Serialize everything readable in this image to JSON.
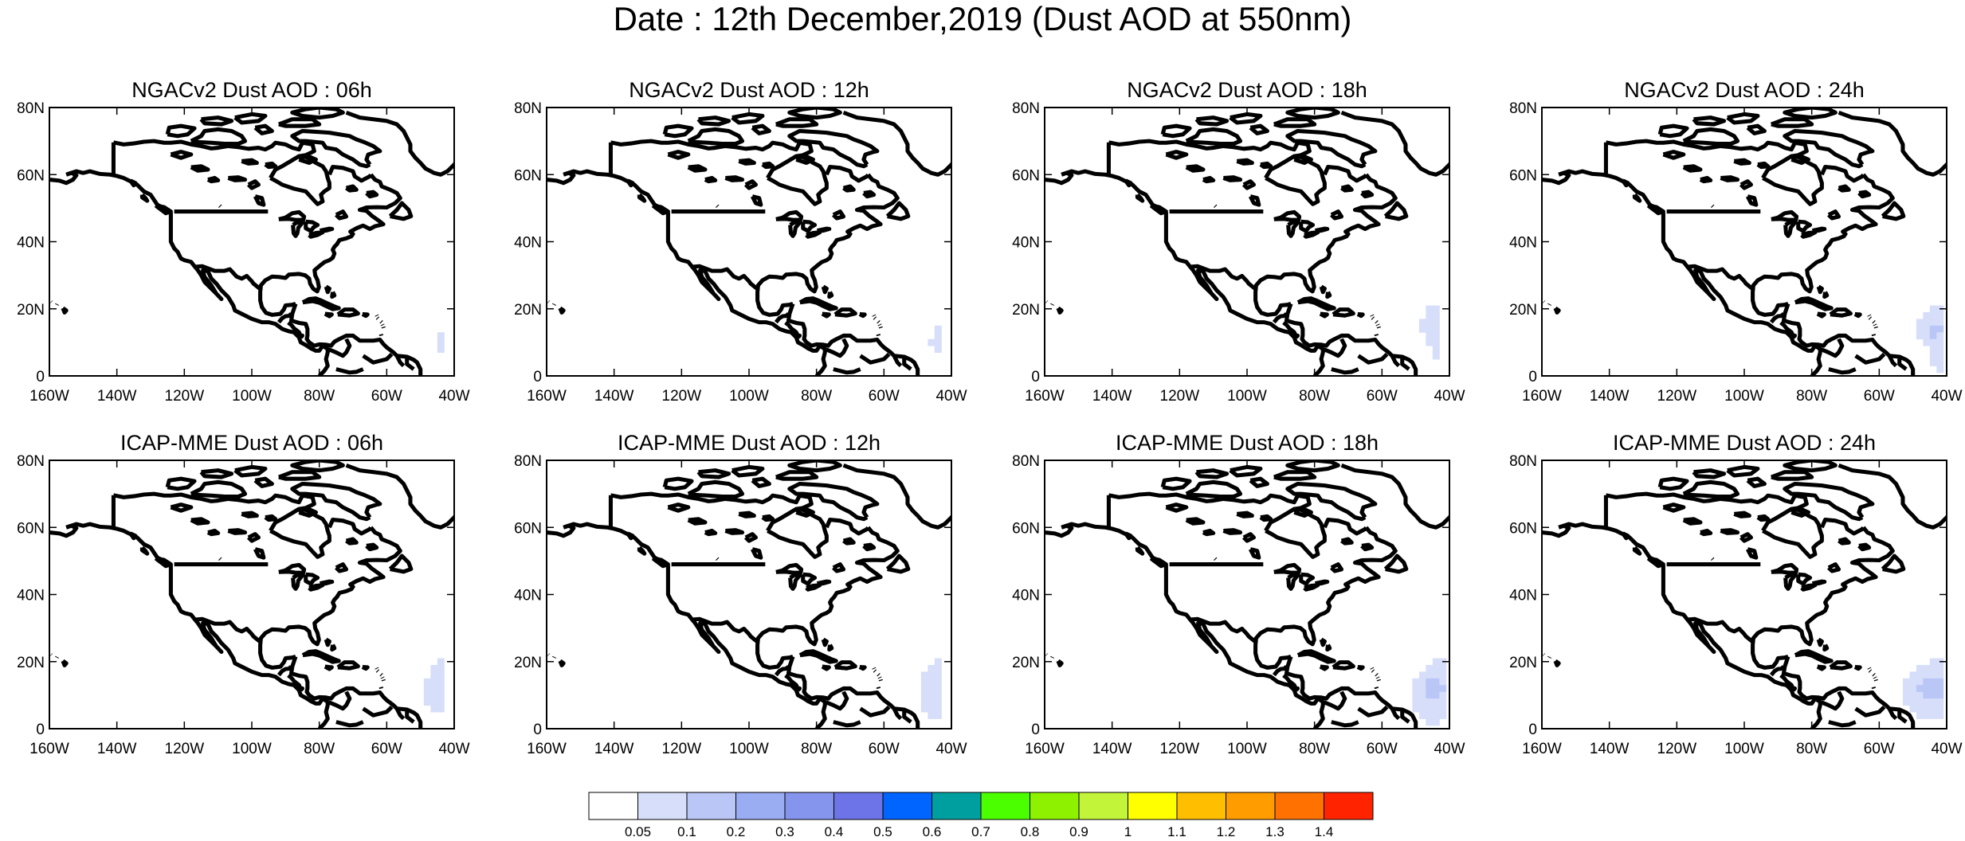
{
  "title": "Date : 12th December,2019 (Dust AOD at 550nm)",
  "panels": [
    {
      "title": "NGACv2 Dust AOD : 06h",
      "dust_cells": [
        [
          -44,
          12,
          0.05
        ],
        [
          -44,
          10,
          0.05
        ],
        [
          -44,
          8,
          0.05
        ]
      ]
    },
    {
      "title": "NGACv2 Dust AOD : 12h",
      "dust_cells": [
        [
          -44,
          14,
          0.05
        ],
        [
          -44,
          12,
          0.05
        ],
        [
          -44,
          10,
          0.05
        ],
        [
          -44,
          8,
          0.05
        ],
        [
          -46,
          10,
          0.05
        ]
      ]
    },
    {
      "title": "NGACv2 Dust AOD : 18h",
      "dust_cells": [
        [
          -46,
          20,
          0.05
        ],
        [
          -44,
          20,
          0.05
        ],
        [
          -46,
          18,
          0.05
        ],
        [
          -44,
          18,
          0.05
        ],
        [
          -48,
          16,
          0.05
        ],
        [
          -46,
          16,
          0.05
        ],
        [
          -44,
          16,
          0.05
        ],
        [
          -48,
          14,
          0.05
        ],
        [
          -46,
          14,
          0.05
        ],
        [
          -44,
          14,
          0.05
        ],
        [
          -46,
          12,
          0.05
        ],
        [
          -44,
          12,
          0.05
        ],
        [
          -46,
          10,
          0.05
        ],
        [
          -44,
          10,
          0.05
        ],
        [
          -44,
          8,
          0.05
        ],
        [
          -44,
          6,
          0.05
        ]
      ]
    },
    {
      "title": "NGACv2 Dust AOD : 24h",
      "dust_cells": [
        [
          -44,
          20,
          0.05
        ],
        [
          -42,
          20,
          0.05
        ],
        [
          -46,
          18,
          0.05
        ],
        [
          -44,
          18,
          0.05
        ],
        [
          -42,
          18,
          0.05
        ],
        [
          -48,
          16,
          0.05
        ],
        [
          -46,
          16,
          0.05
        ],
        [
          -44,
          16,
          0.05
        ],
        [
          -42,
          16,
          0.05
        ],
        [
          -48,
          14,
          0.05
        ],
        [
          -46,
          14,
          0.05
        ],
        [
          -44,
          14,
          0.1
        ],
        [
          -42,
          14,
          0.1
        ],
        [
          -48,
          12,
          0.05
        ],
        [
          -46,
          12,
          0.05
        ],
        [
          -44,
          12,
          0.1
        ],
        [
          -42,
          12,
          0.05
        ],
        [
          -46,
          10,
          0.05
        ],
        [
          -44,
          10,
          0.05
        ],
        [
          -42,
          10,
          0.05
        ],
        [
          -44,
          8,
          0.05
        ],
        [
          -42,
          8,
          0.05
        ],
        [
          -44,
          6,
          0.05
        ],
        [
          -42,
          6,
          0.05
        ],
        [
          -44,
          4,
          0.05
        ],
        [
          -42,
          4,
          0.05
        ],
        [
          -42,
          2,
          0.05
        ]
      ]
    },
    {
      "title": "ICAP-MME Dust AOD : 06h",
      "dust_cells": [
        [
          -44,
          20,
          0.05
        ],
        [
          -46,
          18,
          0.05
        ],
        [
          -44,
          18,
          0.05
        ],
        [
          -46,
          16,
          0.05
        ],
        [
          -44,
          16,
          0.05
        ],
        [
          -48,
          14,
          0.05
        ],
        [
          -46,
          14,
          0.05
        ],
        [
          -44,
          14,
          0.05
        ],
        [
          -48,
          12,
          0.05
        ],
        [
          -46,
          12,
          0.05
        ],
        [
          -44,
          12,
          0.05
        ],
        [
          -48,
          10,
          0.05
        ],
        [
          -46,
          10,
          0.05
        ],
        [
          -44,
          10,
          0.05
        ],
        [
          -48,
          8,
          0.05
        ],
        [
          -46,
          8,
          0.05
        ],
        [
          -44,
          8,
          0.05
        ],
        [
          -46,
          6,
          0.05
        ],
        [
          -44,
          6,
          0.05
        ]
      ]
    },
    {
      "title": "ICAP-MME Dust AOD : 12h",
      "dust_cells": [
        [
          -44,
          20,
          0.05
        ],
        [
          -46,
          18,
          0.05
        ],
        [
          -44,
          18,
          0.05
        ],
        [
          -48,
          16,
          0.05
        ],
        [
          -46,
          16,
          0.05
        ],
        [
          -44,
          16,
          0.05
        ],
        [
          -48,
          14,
          0.05
        ],
        [
          -46,
          14,
          0.05
        ],
        [
          -44,
          14,
          0.05
        ],
        [
          -48,
          12,
          0.05
        ],
        [
          -46,
          12,
          0.05
        ],
        [
          -44,
          12,
          0.05
        ],
        [
          -48,
          10,
          0.05
        ],
        [
          -46,
          10,
          0.05
        ],
        [
          -44,
          10,
          0.05
        ],
        [
          -48,
          8,
          0.05
        ],
        [
          -46,
          8,
          0.05
        ],
        [
          -44,
          8,
          0.05
        ],
        [
          -48,
          6,
          0.05
        ],
        [
          -46,
          6,
          0.05
        ],
        [
          -44,
          6,
          0.05
        ],
        [
          -46,
          4,
          0.05
        ],
        [
          -44,
          4,
          0.05
        ]
      ]
    },
    {
      "title": "ICAP-MME Dust AOD : 18h",
      "dust_cells": [
        [
          -44,
          20,
          0.05
        ],
        [
          -42,
          20,
          0.05
        ],
        [
          -46,
          18,
          0.05
        ],
        [
          -44,
          18,
          0.05
        ],
        [
          -42,
          18,
          0.05
        ],
        [
          -48,
          16,
          0.05
        ],
        [
          -46,
          16,
          0.05
        ],
        [
          -44,
          16,
          0.05
        ],
        [
          -42,
          16,
          0.05
        ],
        [
          -50,
          14,
          0.05
        ],
        [
          -48,
          14,
          0.05
        ],
        [
          -46,
          14,
          0.1
        ],
        [
          -44,
          14,
          0.1
        ],
        [
          -42,
          14,
          0.05
        ],
        [
          -50,
          12,
          0.05
        ],
        [
          -48,
          12,
          0.05
        ],
        [
          -46,
          12,
          0.1
        ],
        [
          -44,
          12,
          0.1
        ],
        [
          -42,
          12,
          0.1
        ],
        [
          -50,
          10,
          0.05
        ],
        [
          -48,
          10,
          0.05
        ],
        [
          -46,
          10,
          0.1
        ],
        [
          -44,
          10,
          0.1
        ],
        [
          -42,
          10,
          0.05
        ],
        [
          -50,
          8,
          0.05
        ],
        [
          -48,
          8,
          0.05
        ],
        [
          -46,
          8,
          0.05
        ],
        [
          -44,
          8,
          0.05
        ],
        [
          -42,
          8,
          0.05
        ],
        [
          -50,
          6,
          0.05
        ],
        [
          -48,
          6,
          0.05
        ],
        [
          -46,
          6,
          0.05
        ],
        [
          -44,
          6,
          0.05
        ],
        [
          -42,
          6,
          0.05
        ],
        [
          -48,
          4,
          0.05
        ],
        [
          -46,
          4,
          0.05
        ],
        [
          -44,
          4,
          0.05
        ],
        [
          -42,
          4,
          0.05
        ],
        [
          -46,
          2,
          0.05
        ],
        [
          -44,
          2,
          0.05
        ]
      ]
    },
    {
      "title": "ICAP-MME Dust AOD : 24h",
      "dust_cells": [
        [
          -44,
          20,
          0.05
        ],
        [
          -42,
          20,
          0.05
        ],
        [
          -48,
          18,
          0.05
        ],
        [
          -46,
          18,
          0.05
        ],
        [
          -44,
          18,
          0.05
        ],
        [
          -42,
          18,
          0.05
        ],
        [
          -50,
          16,
          0.05
        ],
        [
          -48,
          16,
          0.05
        ],
        [
          -46,
          16,
          0.05
        ],
        [
          -44,
          16,
          0.05
        ],
        [
          -42,
          16,
          0.05
        ],
        [
          -52,
          14,
          0.05
        ],
        [
          -50,
          14,
          0.05
        ],
        [
          -48,
          14,
          0.05
        ],
        [
          -46,
          14,
          0.1
        ],
        [
          -44,
          14,
          0.1
        ],
        [
          -42,
          14,
          0.1
        ],
        [
          -52,
          12,
          0.05
        ],
        [
          -50,
          12,
          0.05
        ],
        [
          -48,
          12,
          0.1
        ],
        [
          -46,
          12,
          0.1
        ],
        [
          -44,
          12,
          0.1
        ],
        [
          -42,
          12,
          0.1
        ],
        [
          -52,
          10,
          0.05
        ],
        [
          -50,
          10,
          0.05
        ],
        [
          -48,
          10,
          0.05
        ],
        [
          -46,
          10,
          0.1
        ],
        [
          -44,
          10,
          0.1
        ],
        [
          -42,
          10,
          0.1
        ],
        [
          -52,
          8,
          0.05
        ],
        [
          -50,
          8,
          0.05
        ],
        [
          -48,
          8,
          0.05
        ],
        [
          -46,
          8,
          0.05
        ],
        [
          -44,
          8,
          0.05
        ],
        [
          -42,
          8,
          0.05
        ],
        [
          -50,
          6,
          0.05
        ],
        [
          -48,
          6,
          0.05
        ],
        [
          -46,
          6,
          0.05
        ],
        [
          -44,
          6,
          0.05
        ],
        [
          -42,
          6,
          0.05
        ],
        [
          -48,
          4,
          0.05
        ],
        [
          -46,
          4,
          0.05
        ],
        [
          -44,
          4,
          0.05
        ],
        [
          -42,
          4,
          0.05
        ]
      ]
    }
  ],
  "map": {
    "lon_range": [
      -160,
      -40
    ],
    "lat_range": [
      0,
      80
    ],
    "x_ticks": [
      "160W",
      "140W",
      "120W",
      "100W",
      "80W",
      "60W",
      "40W"
    ],
    "y_ticks": [
      "0",
      "20N",
      "40N",
      "60N",
      "80N"
    ],
    "line_color": "#000000"
  },
  "colorbar": {
    "labels": [
      "0.05",
      "0.1",
      "0.2",
      "0.3",
      "0.4",
      "0.5",
      "0.6",
      "0.7",
      "0.8",
      "0.9",
      "1",
      "1.1",
      "1.2",
      "1.3",
      "1.4"
    ],
    "colors": [
      "#ffffff",
      "#d6defa",
      "#b9c6f6",
      "#9badf2",
      "#8595ee",
      "#6d74e8",
      "#0064ff",
      "#009f9f",
      "#4cff00",
      "#8ef100",
      "#c2f43a",
      "#ffff00",
      "#ffbf00",
      "#ff9c00",
      "#ff7100",
      "#ff2300"
    ]
  }
}
